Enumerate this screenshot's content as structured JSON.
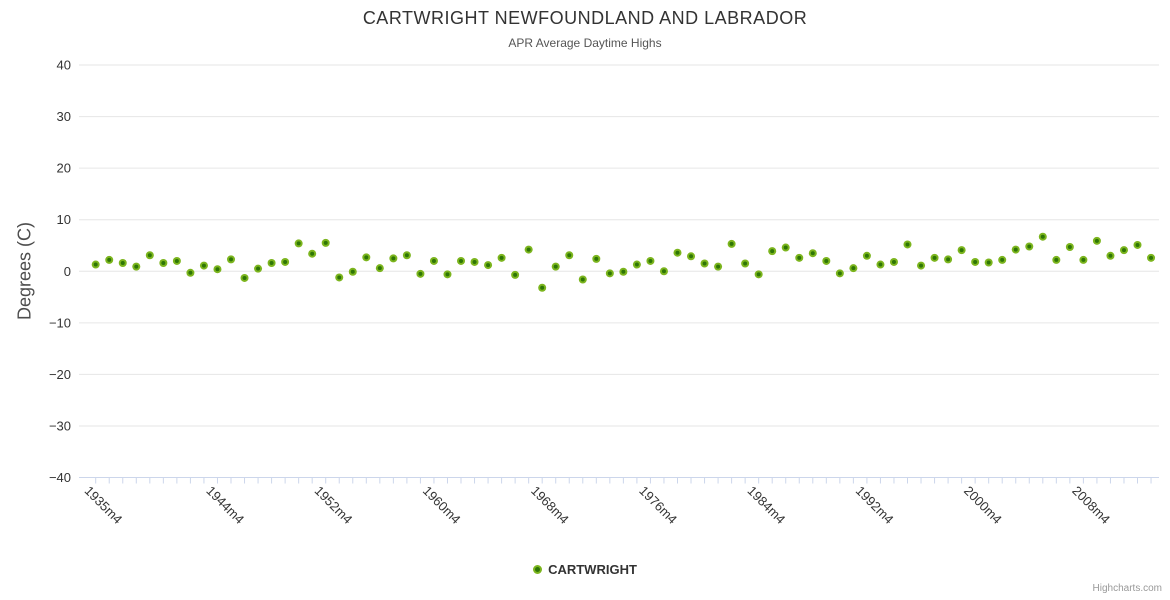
{
  "chart": {
    "title": "CARTWRIGHT NEWFOUNDLAND AND LABRADOR",
    "subtitle": "APR Average Daytime Highs",
    "yaxis_title": "Degrees (C)"
  },
  "legend": {
    "series_label": "CARTWRIGHT"
  },
  "credits": {
    "text": "Highcharts.com"
  },
  "colors": {
    "marker_outer": "#7cb51e",
    "marker_inner": "#2e7605",
    "grid_line": "#e6e6e6",
    "axis_line": "#ccd6eb",
    "tick_mark": "#ccd6eb",
    "axis_label": "#333333",
    "title": "#333333",
    "subtitle": "#555555",
    "credits": "#999999"
  },
  "chart_data": {
    "type": "scatter",
    "title": "CARTWRIGHT NEWFOUNDLAND AND LABRADOR",
    "subtitle": "APR Average Daytime Highs",
    "xlabel": "",
    "ylabel": "Degrees (C)",
    "ylim": [
      -40,
      40
    ],
    "yticks": [
      40,
      30,
      20,
      10,
      0,
      -10,
      -20,
      -30,
      -40
    ],
    "xtick_years": [
      1935,
      1944,
      1952,
      1960,
      1968,
      1976,
      1984,
      1992,
      2000,
      2008
    ],
    "xtick_labels": [
      "1935m4",
      "1944m4",
      "1952m4",
      "1960m4",
      "1968m4",
      "1976m4",
      "1984m4",
      "1992m4",
      "2000m4",
      "2008m4"
    ],
    "grid": "horizontal-only",
    "legend_position": "bottom-center",
    "series": [
      {
        "name": "CARTWRIGHT",
        "x": [
          1935,
          1936,
          1937,
          1938,
          1939,
          1940,
          1941,
          1942,
          1943,
          1944,
          1945,
          1946,
          1947,
          1948,
          1949,
          1950,
          1951,
          1952,
          1953,
          1954,
          1955,
          1956,
          1957,
          1958,
          1959,
          1960,
          1961,
          1962,
          1963,
          1964,
          1965,
          1966,
          1967,
          1968,
          1969,
          1970,
          1971,
          1972,
          1973,
          1974,
          1975,
          1976,
          1977,
          1978,
          1979,
          1980,
          1981,
          1982,
          1983,
          1984,
          1985,
          1986,
          1987,
          1988,
          1989,
          1990,
          1991,
          1992,
          1993,
          1994,
          1995,
          1996,
          1997,
          1998,
          1999,
          2000,
          2001,
          2002,
          2003,
          2004,
          2005,
          2006,
          2007,
          2008,
          2009,
          2010,
          2011,
          2012,
          2013
        ],
        "values": [
          1.3,
          2.2,
          1.6,
          0.9,
          3.1,
          1.6,
          2.0,
          -0.3,
          1.1,
          0.4,
          2.3,
          -1.3,
          0.5,
          1.6,
          1.8,
          5.4,
          3.4,
          5.5,
          -1.2,
          -0.1,
          2.7,
          0.6,
          2.5,
          3.1,
          -0.5,
          2.0,
          -0.6,
          2.0,
          1.8,
          1.2,
          2.6,
          -0.7,
          4.2,
          -3.2,
          0.9,
          3.1,
          -1.6,
          2.4,
          -0.4,
          -0.1,
          1.3,
          2.0,
          0.0,
          3.6,
          2.9,
          1.5,
          0.9,
          5.3,
          1.5,
          -0.6,
          3.9,
          4.6,
          2.6,
          3.5,
          2.0,
          -0.4,
          0.6,
          3.0,
          1.3,
          1.8,
          5.2,
          1.1,
          2.6,
          2.3,
          4.1,
          1.8,
          1.7,
          2.2,
          4.2,
          4.8,
          6.7,
          2.2,
          4.7,
          2.2,
          5.9,
          3.0,
          4.1,
          5.1,
          2.6
        ]
      }
    ]
  }
}
